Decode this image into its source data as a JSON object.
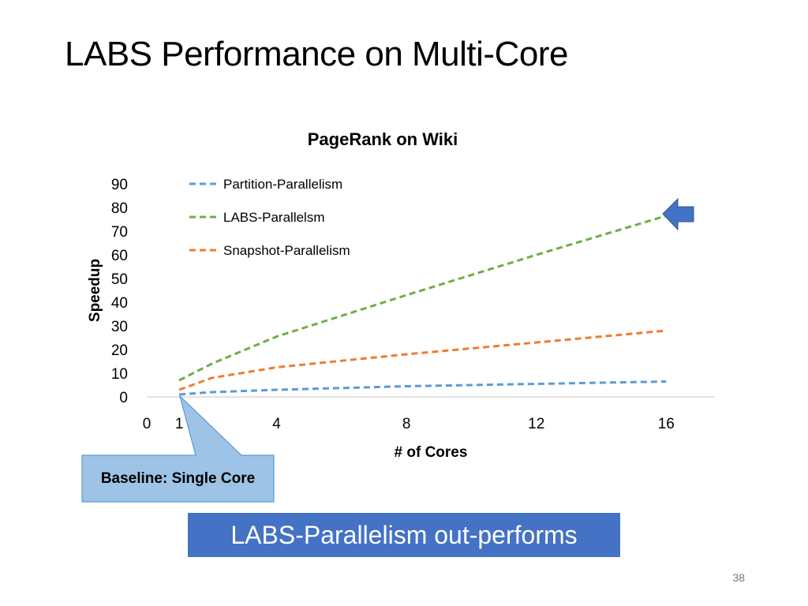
{
  "slide": {
    "title": "LABS Performance on Multi-Core",
    "callout": "Baseline: Single Core",
    "banner": "LABS-Parallelism out-performs",
    "page_number": "38"
  },
  "arrow_icon": "left-arrow-icon",
  "chart_data": {
    "type": "line",
    "title": "PageRank on Wiki",
    "xlabel": "# of Cores",
    "ylabel": "Speedup",
    "x_ticks": [
      0,
      1,
      4,
      8,
      12,
      16
    ],
    "y_ticks": [
      0,
      10,
      20,
      30,
      40,
      50,
      60,
      70,
      80,
      90
    ],
    "xlim": [
      0,
      17.5
    ],
    "ylim": [
      0,
      90
    ],
    "legend_position": "top-left",
    "line_style": "dashed",
    "series": [
      {
        "name": "Partition-Parallelism",
        "color": "#5b9bd5",
        "x": [
          1,
          2,
          4,
          8,
          12,
          16
        ],
        "y": [
          1,
          2,
          3,
          4.5,
          5.5,
          6.5
        ]
      },
      {
        "name": "LABS-Parallelsm",
        "color": "#70ad47",
        "x": [
          1,
          2,
          4,
          8,
          12,
          16
        ],
        "y": [
          7,
          14,
          25.5,
          43,
          60,
          76.5
        ]
      },
      {
        "name": "Snapshot-Parallelism",
        "color": "#ed7d31",
        "x": [
          1,
          2,
          4,
          8,
          12,
          16
        ],
        "y": [
          3,
          8,
          12.5,
          18,
          23,
          28
        ]
      }
    ]
  }
}
